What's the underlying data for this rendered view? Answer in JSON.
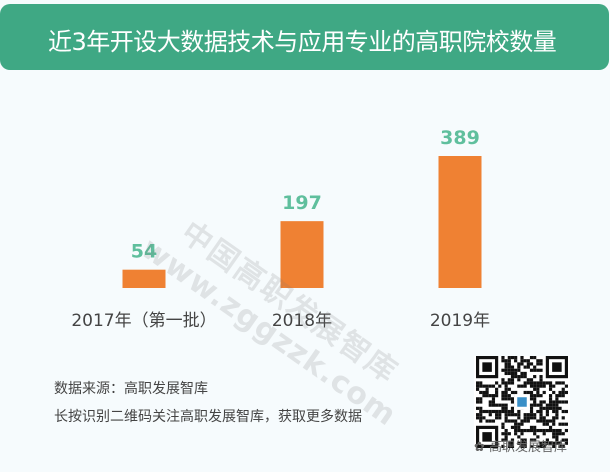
{
  "title": "近3年开设大数据技术与应用专业的高职院校数量",
  "colors": {
    "header": "#3fa884",
    "bar": "#ef8133",
    "value_label": "#5fbf9d"
  },
  "chart_data": {
    "type": "bar",
    "title": "近3年开设大数据技术与应用专业的高职院校数量",
    "categories": [
      "2017年（第一批）",
      "2018年",
      "2019年"
    ],
    "values": [
      54,
      197,
      389
    ],
    "ylim": [
      0,
      389
    ],
    "grid": false,
    "data_labels": true
  },
  "watermark": {
    "line1": "中国高职发展智库",
    "line2": "www.zggzzk.com"
  },
  "footer": {
    "source": "数据来源：高职发展智库",
    "cta": "长按识别二维码关注高职发展智库，获取更多数据",
    "wechat_name": "高职发展智库"
  }
}
